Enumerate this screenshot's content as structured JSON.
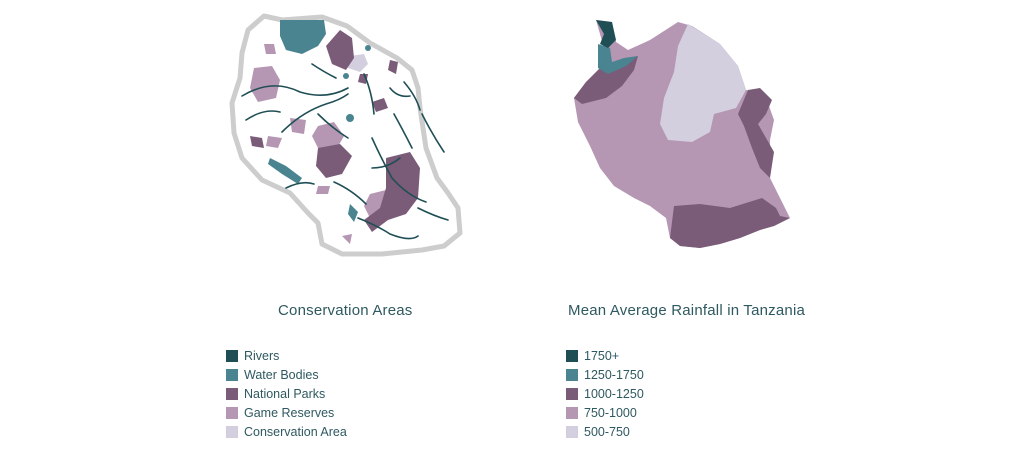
{
  "colors": {
    "dark_teal": "#1f4f55",
    "teal": "#4a8490",
    "plum": "#7a5b78",
    "mauve": "#b596b3",
    "lavender": "#d3cfdf",
    "outline_gray": "#cdcdcd",
    "text": "#2e5960"
  },
  "conservation": {
    "title": "Conservation Areas",
    "legend": [
      {
        "label": "Rivers",
        "color": "#1f4f55"
      },
      {
        "label": "Water Bodies",
        "color": "#4a8490"
      },
      {
        "label": "National Parks",
        "color": "#7a5b78"
      },
      {
        "label": "Game Reserves",
        "color": "#b596b3"
      },
      {
        "label": "Conservation Area",
        "color": "#d3cfdf"
      }
    ]
  },
  "rainfall": {
    "title": "Mean Average Rainfall in Tanzania",
    "legend": [
      {
        "label": "1750+",
        "color": "#1f4f55"
      },
      {
        "label": "1250-1750",
        "color": "#4a8490"
      },
      {
        "label": "1000-1250",
        "color": "#7a5b78"
      },
      {
        "label": "750-1000",
        "color": "#b596b3"
      },
      {
        "label": "500-750",
        "color": "#d3cfdf"
      }
    ]
  }
}
